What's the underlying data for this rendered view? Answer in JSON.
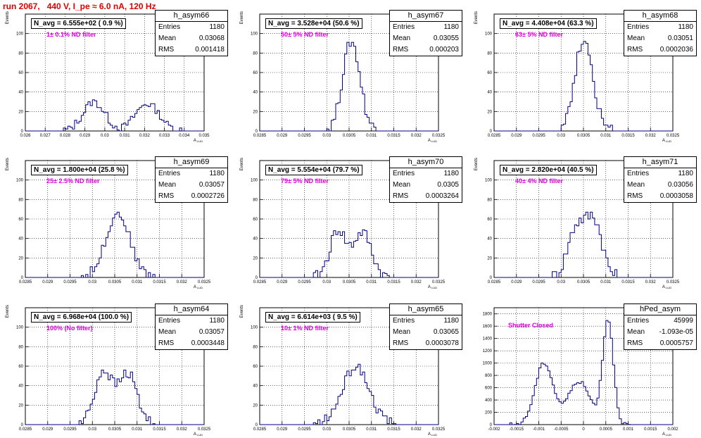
{
  "page_title": "run 2067,   440 V, I_pe ≈ 6.0 nA, 120 Hz",
  "colors": {
    "title": "#e00000",
    "histogram": "#000080",
    "annotation": "#e000e0"
  },
  "chart_data": [
    {
      "type": "bar",
      "name": "h_asym66",
      "navg": "N_avg = 6.555e+02 ( 0.9 %)",
      "filter": "1± 0.1% ND filter",
      "stats": [
        [
          "Entries",
          "1180"
        ],
        [
          "Mean",
          "0.03068"
        ],
        [
          "RMS",
          "0.001418"
        ]
      ],
      "xlabel": "A_LUD",
      "ylabel": "Events",
      "xlim": [
        0.026,
        0.035
      ],
      "ylim": [
        0,
        120
      ],
      "xticks": [
        0.026,
        0.027,
        0.028,
        0.029,
        0.03,
        0.031,
        0.032,
        0.033,
        0.034,
        0.035
      ],
      "xtick_labels": [
        "0.026",
        "0.027",
        "0.028",
        "0.029",
        "0.03",
        "0.031",
        "0.032",
        "0.033",
        "0.034",
        "0.035"
      ],
      "yticks": [
        0,
        20,
        40,
        60,
        80,
        100
      ],
      "peaks": [
        {
          "mu": 0.02945,
          "sigma": 0.00055,
          "amp": 30
        },
        {
          "mu": 0.03215,
          "sigma": 0.0006,
          "amp": 28
        }
      ],
      "noise": 4
    },
    {
      "type": "bar",
      "name": "h_asym67",
      "navg": "N_avg = 3.528e+04 (50.6 %)",
      "filter": "50± 5% ND filter",
      "stats": [
        [
          "Entries",
          "1180"
        ],
        [
          "Mean",
          "0.03055"
        ],
        [
          "RMS",
          "0.000203"
        ]
      ],
      "xlabel": "A_LUD",
      "ylabel": "Events",
      "xlim": [
        0.0285,
        0.0325
      ],
      "ylim": [
        0,
        120
      ],
      "xticks": [
        0.0285,
        0.029,
        0.0295,
        0.03,
        0.0305,
        0.031,
        0.0315,
        0.032,
        0.0325
      ],
      "xtick_labels": [
        "0.0285",
        "0.029",
        "0.0295",
        "0.03",
        "0.0305",
        "0.031",
        "0.0315",
        "0.032",
        "0.0325"
      ],
      "yticks": [
        0,
        20,
        40,
        60,
        80,
        100
      ],
      "peaks": [
        {
          "mu": 0.03055,
          "sigma": 0.000195,
          "amp": 92
        }
      ],
      "noise": 6
    },
    {
      "type": "bar",
      "name": "h_asym68",
      "navg": "N_avg = 4.408e+04 (63.3 %)",
      "filter": "63± 5% ND filter",
      "stats": [
        [
          "Entries",
          "1180"
        ],
        [
          "Mean",
          "0.03051"
        ],
        [
          "RMS",
          "0.0002036"
        ]
      ],
      "xlabel": "A_LUD",
      "ylabel": "Events",
      "xlim": [
        0.0285,
        0.0325
      ],
      "ylim": [
        0,
        120
      ],
      "xticks": [
        0.0285,
        0.029,
        0.0295,
        0.03,
        0.0305,
        0.031,
        0.0315,
        0.032,
        0.0325
      ],
      "xtick_labels": [
        "0.0285",
        "0.029",
        "0.0295",
        "0.03",
        "0.0305",
        "0.031",
        "0.0315",
        "0.032",
        "0.0325"
      ],
      "yticks": [
        0,
        20,
        40,
        60,
        80,
        100
      ],
      "peaks": [
        {
          "mu": 0.03051,
          "sigma": 0.0002,
          "amp": 95
        }
      ],
      "noise": 6
    },
    {
      "type": "bar",
      "name": "h_asym69",
      "navg": "N_avg = 1.800e+04 (25.8 %)",
      "filter": "25± 2.5% ND filter",
      "stats": [
        [
          "Entries",
          "1180"
        ],
        [
          "Mean",
          "0.03057"
        ],
        [
          "RMS",
          "0.0002726"
        ]
      ],
      "xlabel": "A_LUD",
      "ylabel": "Events",
      "xlim": [
        0.0285,
        0.0325
      ],
      "ylim": [
        0,
        120
      ],
      "xticks": [
        0.0285,
        0.029,
        0.0295,
        0.03,
        0.0305,
        0.031,
        0.0315,
        0.032,
        0.0325
      ],
      "xtick_labels": [
        "0.0285",
        "0.029",
        "0.0295",
        "0.03",
        "0.0305",
        "0.031",
        "0.0315",
        "0.032",
        "0.0325"
      ],
      "yticks": [
        0,
        20,
        40,
        60,
        80,
        100
      ],
      "peaks": [
        {
          "mu": 0.03057,
          "sigma": 0.00027,
          "amp": 66
        }
      ],
      "noise": 5
    },
    {
      "type": "bar",
      "name": "h_asym70",
      "navg": "N_avg = 5.554e+04 (79.7 %)",
      "filter": "79± 5% ND filter",
      "stats": [
        [
          "Entries",
          "1180"
        ],
        [
          "Mean",
          "0.0305"
        ],
        [
          "RMS",
          "0.0003264"
        ]
      ],
      "xlabel": "A_LUD",
      "ylabel": "Events",
      "xlim": [
        0.0285,
        0.0325
      ],
      "ylim": [
        0,
        120
      ],
      "xticks": [
        0.0285,
        0.029,
        0.0295,
        0.03,
        0.0305,
        0.031,
        0.0315,
        0.032,
        0.0325
      ],
      "xtick_labels": [
        "0.0285",
        "0.029",
        "0.0295",
        "0.03",
        "0.0305",
        "0.031",
        "0.0315",
        "0.032",
        "0.0325"
      ],
      "yticks": [
        0,
        20,
        40,
        60,
        80,
        100
      ],
      "peaks": [
        {
          "mu": 0.03025,
          "sigma": 0.00018,
          "amp": 48
        },
        {
          "mu": 0.0308,
          "sigma": 0.0002,
          "amp": 46
        }
      ],
      "noise": 6
    },
    {
      "type": "bar",
      "name": "h_asym71",
      "navg": "N_avg = 2.820e+04 (40.5 %)",
      "filter": "40± 4% ND filter",
      "stats": [
        [
          "Entries",
          "1180"
        ],
        [
          "Mean",
          "0.03056"
        ],
        [
          "RMS",
          "0.0003058"
        ]
      ],
      "xlabel": "A_LUD",
      "ylabel": "Events",
      "xlim": [
        0.0285,
        0.0325
      ],
      "ylim": [
        0,
        120
      ],
      "xticks": [
        0.0285,
        0.029,
        0.0295,
        0.03,
        0.0305,
        0.031,
        0.0315,
        0.032,
        0.0325
      ],
      "xtick_labels": [
        "0.0285",
        "0.029",
        "0.0295",
        "0.03",
        "0.0305",
        "0.031",
        "0.0315",
        "0.032",
        "0.0325"
      ],
      "yticks": [
        0,
        20,
        40,
        60,
        80,
        100
      ],
      "peaks": [
        {
          "mu": 0.03035,
          "sigma": 0.0002,
          "amp": 52
        },
        {
          "mu": 0.03075,
          "sigma": 0.00018,
          "amp": 55
        }
      ],
      "noise": 7
    },
    {
      "type": "bar",
      "name": "h_asym64",
      "navg": "N_avg = 6.968e+04 (100.0 %)",
      "filter": "100% (No filter)",
      "stats": [
        [
          "Entries",
          "1180"
        ],
        [
          "Mean",
          "0.03057"
        ],
        [
          "RMS",
          "0.0003448"
        ]
      ],
      "xlabel": "A_LUD",
      "ylabel": "Events",
      "xlim": [
        0.0285,
        0.0325
      ],
      "ylim": [
        0,
        120
      ],
      "xticks": [
        0.0285,
        0.029,
        0.0295,
        0.03,
        0.0305,
        0.031,
        0.0315,
        0.032,
        0.0325
      ],
      "xtick_labels": [
        "0.0285",
        "0.029",
        "0.0295",
        "0.03",
        "0.0305",
        "0.031",
        "0.0315",
        "0.032",
        "0.0325"
      ],
      "yticks": [
        0,
        20,
        40,
        60,
        80,
        100
      ],
      "peaks": [
        {
          "mu": 0.03025,
          "sigma": 0.0002,
          "amp": 55
        },
        {
          "mu": 0.0308,
          "sigma": 0.0002,
          "amp": 52
        }
      ],
      "noise": 6
    },
    {
      "type": "bar",
      "name": "h_asym65",
      "navg": "N_avg = 6.614e+03 ( 9.5 %)",
      "filter": "10± 1% ND filter",
      "stats": [
        [
          "Entries",
          "1180"
        ],
        [
          "Mean",
          "0.03065"
        ],
        [
          "RMS",
          "0.0003078"
        ]
      ],
      "xlabel": "A_LUD",
      "ylabel": "Events",
      "xlim": [
        0.0285,
        0.0325
      ],
      "ylim": [
        0,
        120
      ],
      "xticks": [
        0.0285,
        0.029,
        0.0295,
        0.03,
        0.0305,
        0.031,
        0.0315,
        0.032,
        0.0325
      ],
      "xtick_labels": [
        "0.0285",
        "0.029",
        "0.0295",
        "0.03",
        "0.0305",
        "0.031",
        "0.0315",
        "0.032",
        "0.0325"
      ],
      "yticks": [
        0,
        20,
        40,
        60,
        80,
        100
      ],
      "peaks": [
        {
          "mu": 0.03065,
          "sigma": 0.0003,
          "amp": 60
        }
      ],
      "noise": 5
    },
    {
      "type": "bar",
      "name": "hPed_asym",
      "navg": "",
      "filter": "Shutter Closed",
      "stats": [
        [
          "Entries",
          "45999"
        ],
        [
          "Mean",
          "-1.093e-05"
        ],
        [
          "RMS",
          "0.0005757"
        ]
      ],
      "xlabel": "A_LUD",
      "ylabel": "",
      "xlim": [
        -0.002,
        0.002
      ],
      "ylim": [
        0,
        1900
      ],
      "xticks": [
        -0.002,
        -0.0015,
        -0.001,
        -0.0005,
        0,
        0.0005,
        0.001,
        0.0015,
        0.002
      ],
      "xtick_labels": [
        "-0.002",
        "-0.0015",
        "-0.001",
        "-0.0005",
        "0",
        "0.0005",
        "0.001",
        "0.0015",
        "0.002"
      ],
      "yticks": [
        0,
        200,
        400,
        600,
        800,
        1000,
        1200,
        1400,
        1600,
        1800
      ],
      "peaks": [
        {
          "mu": -0.00088,
          "sigma": 0.0002,
          "amp": 1000
        },
        {
          "mu": -0.0001,
          "sigma": 0.00025,
          "amp": 700
        },
        {
          "mu": 0.00055,
          "sigma": 0.00012,
          "amp": 1700
        }
      ],
      "noise": 30
    }
  ]
}
